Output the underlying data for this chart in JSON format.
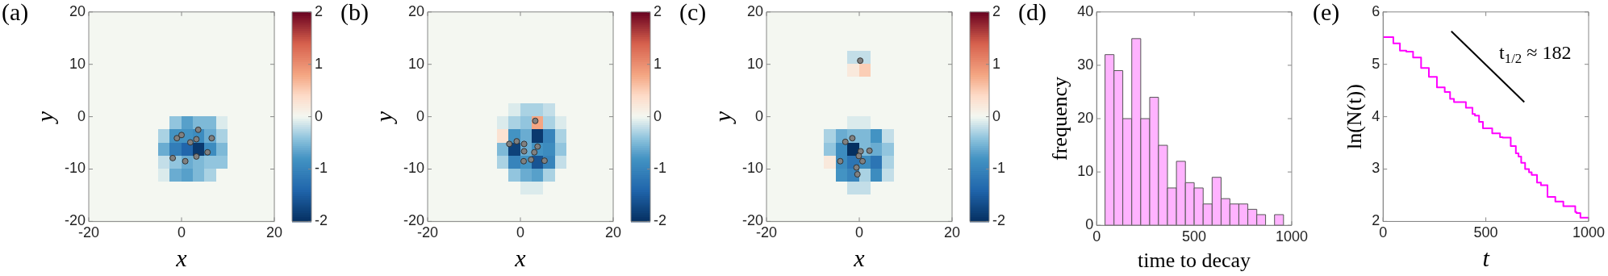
{
  "chart_data": [
    {
      "type": "heatmap",
      "title": "(a)",
      "xlabel": "x",
      "ylabel": "y",
      "xlim": [
        -20,
        20
      ],
      "ylim": [
        -20,
        20
      ],
      "xticks": [
        -20,
        0,
        20
      ],
      "yticks": [
        -20,
        -10,
        0,
        10,
        20
      ],
      "clim": [
        -2,
        2
      ],
      "cticks": [
        -2,
        -1,
        0,
        1,
        2
      ],
      "marker": "circle",
      "cells": [
        [
          0,
          0,
          0,
          0,
          0,
          0,
          0,
          0,
          0,
          0,
          0,
          0,
          0,
          0,
          0,
          0
        ],
        [
          0,
          0,
          0,
          0,
          0,
          0,
          0,
          0,
          0,
          0,
          0,
          0,
          0,
          0,
          0,
          0
        ],
        [
          0,
          0,
          0,
          0,
          0,
          0,
          0,
          0,
          0,
          0,
          0,
          0,
          0,
          0,
          0,
          0
        ],
        [
          0,
          0,
          0,
          0,
          0,
          0,
          0,
          0,
          0,
          0,
          0,
          0,
          0,
          0,
          0,
          0
        ],
        [
          0,
          0,
          0,
          0,
          0,
          0,
          0,
          0,
          0,
          0,
          0,
          0,
          0,
          0,
          0,
          0
        ],
        [
          0,
          0,
          0,
          0,
          0,
          0,
          0,
          0,
          0,
          0,
          0,
          0,
          0,
          0,
          0,
          0
        ],
        [
          0,
          0,
          0,
          0,
          0,
          0,
          0,
          0,
          0,
          0,
          0,
          0,
          0,
          0,
          0,
          0
        ],
        [
          0,
          0,
          0,
          0,
          0,
          0,
          0,
          0,
          0,
          0,
          0,
          0,
          0,
          0,
          0,
          0
        ],
        [
          0,
          0,
          0,
          0,
          0,
          0,
          0,
          -0.4,
          -0.7,
          -0.5,
          -0.5,
          -0.1,
          0,
          0,
          0,
          0
        ],
        [
          0,
          0,
          0,
          0,
          0,
          0,
          -0.3,
          -0.8,
          -0.8,
          -0.9,
          -0.6,
          -0.3,
          0,
          0,
          0,
          0
        ],
        [
          0,
          0,
          0,
          0,
          0,
          0,
          -0.6,
          -1.1,
          -1.4,
          -1.9,
          -0.9,
          -0.5,
          0,
          0,
          0,
          0
        ],
        [
          0,
          0,
          0,
          0,
          0,
          0,
          -0.2,
          -0.4,
          -0.6,
          -0.5,
          -0.4,
          -0.4,
          0,
          0,
          0,
          0
        ],
        [
          0,
          0,
          0,
          0,
          0,
          0,
          -0.1,
          -0.6,
          -0.7,
          -0.5,
          -0.3,
          0,
          0,
          0,
          0,
          0
        ],
        [
          0,
          0,
          0,
          0,
          0,
          0,
          0,
          0,
          0,
          0,
          0,
          0,
          0,
          0,
          0,
          0
        ],
        [
          0,
          0,
          0,
          0,
          0,
          0,
          0,
          0,
          0,
          0,
          0,
          0,
          0,
          0,
          0,
          0
        ],
        [
          0,
          0,
          0,
          0,
          0,
          0,
          0,
          0,
          0,
          0,
          0,
          0,
          0,
          0,
          0,
          0
        ]
      ],
      "series": [
        {
          "type": "scatter",
          "color": "#808080",
          "x": [
            -1.0,
            0,
            1.9,
            3.2,
            3.6,
            6.5,
            5.6,
            3.2,
            0.8,
            -1.9
          ],
          "values": [
            -4.1,
            -3.5,
            -4.9,
            -4.3,
            -2.5,
            -4.1,
            -6.8,
            -7.6,
            -8.5,
            -7.9
          ]
        }
      ]
    },
    {
      "type": "heatmap",
      "title": "(b)",
      "xlabel": "x",
      "ylabel": "y",
      "xlim": [
        -20,
        20
      ],
      "ylim": [
        -20,
        20
      ],
      "xticks": [
        -20,
        0,
        20
      ],
      "yticks": [
        -20,
        -10,
        0,
        10,
        20
      ],
      "clim": [
        -2,
        2
      ],
      "cticks": [
        -2,
        -1,
        0,
        1,
        2
      ],
      "marker": "circle",
      "cells": [
        [
          0,
          0,
          0,
          0,
          0,
          0,
          0,
          0,
          0,
          0,
          0,
          0,
          0,
          0,
          0,
          0
        ],
        [
          0,
          0,
          0,
          0,
          0,
          0,
          0,
          0,
          0,
          0,
          0,
          0,
          0,
          0,
          0,
          0
        ],
        [
          0,
          0,
          0,
          0,
          0,
          0,
          0,
          0,
          0,
          0,
          0,
          0,
          0,
          0,
          0,
          0
        ],
        [
          0,
          0,
          0,
          0,
          0,
          0,
          0,
          0,
          0,
          0,
          0,
          0,
          0,
          0,
          0,
          0
        ],
        [
          0,
          0,
          0,
          0,
          0,
          0,
          0,
          0,
          0,
          0,
          0,
          0,
          0,
          0,
          0,
          0
        ],
        [
          0,
          0,
          0,
          0,
          0,
          0,
          0,
          0,
          0,
          0,
          0,
          0,
          0,
          0,
          0,
          0
        ],
        [
          0,
          0,
          0,
          0,
          0,
          0,
          0,
          0,
          0,
          0,
          0,
          0,
          0,
          0,
          0,
          0
        ],
        [
          0,
          0,
          0,
          0,
          0,
          0,
          0,
          -0.1,
          -0.3,
          -0.3,
          -0.2,
          0,
          0,
          0,
          0,
          0
        ],
        [
          0,
          0,
          0,
          0,
          0,
          0,
          -0.1,
          -0.3,
          -0.4,
          0.8,
          -0.3,
          -0.1,
          0,
          0,
          0,
          0
        ],
        [
          0,
          0,
          0,
          0,
          0,
          0,
          0.3,
          -0.8,
          -0.6,
          -1.9,
          -1.0,
          -0.3,
          0,
          0,
          0,
          0
        ],
        [
          0,
          0,
          0,
          0,
          0,
          0,
          -0.5,
          -1.8,
          -0.6,
          -0.8,
          -0.9,
          -0.4,
          0,
          0,
          0,
          0
        ],
        [
          0,
          0,
          0,
          0,
          0,
          0,
          -0.3,
          -1.0,
          -0.8,
          -1.6,
          -1.0,
          -0.2,
          0,
          0,
          0,
          0
        ],
        [
          0,
          0,
          0,
          0,
          0,
          0,
          0,
          -0.4,
          -0.6,
          -0.7,
          -0.3,
          0,
          0,
          0,
          0,
          0
        ],
        [
          0,
          0,
          0,
          0,
          0,
          0,
          0,
          0,
          -0.1,
          -0.1,
          0,
          0,
          0,
          0,
          0,
          0
        ],
        [
          0,
          0,
          0,
          0,
          0,
          0,
          0,
          0,
          0,
          0,
          0,
          0,
          0,
          0,
          0,
          0
        ],
        [
          0,
          0,
          0,
          0,
          0,
          0,
          0,
          0,
          0,
          0,
          0,
          0,
          0,
          0,
          0,
          0
        ]
      ],
      "series": [
        {
          "type": "scatter",
          "color": "#808080",
          "x": [
            3.2,
            -2.4,
            -0.8,
            0.8,
            3.7,
            0.8,
            3.0,
            0.7,
            2.3,
            5.2
          ],
          "values": [
            -0.8,
            -5.2,
            -4.7,
            -5.2,
            -5.7,
            -6.6,
            -6.8,
            -8.5,
            -8.2,
            -8.4
          ]
        }
      ]
    },
    {
      "type": "heatmap",
      "title": "(c)",
      "xlabel": "x",
      "ylabel": "y",
      "xlim": [
        -20,
        20
      ],
      "ylim": [
        -20,
        20
      ],
      "xticks": [
        -20,
        0,
        20
      ],
      "yticks": [
        -20,
        -10,
        0,
        10,
        20
      ],
      "clim": [
        -2,
        2
      ],
      "cticks": [
        -2,
        -1,
        0,
        1,
        2
      ],
      "marker": "circle",
      "cells": [
        [
          0,
          0,
          0,
          0,
          0,
          0,
          0,
          0,
          0,
          0,
          0,
          0,
          0,
          0,
          0,
          0
        ],
        [
          0,
          0,
          0,
          0,
          0,
          0,
          0,
          0,
          0,
          0,
          0,
          0,
          0,
          0,
          0,
          0
        ],
        [
          0,
          0,
          0,
          0,
          0,
          0,
          0,
          0,
          0,
          0,
          0,
          0,
          0,
          0,
          0,
          0
        ],
        [
          0,
          0,
          0,
          0,
          0,
          0,
          0,
          -0.2,
          -0.2,
          0,
          0,
          0,
          0,
          0,
          0,
          0
        ],
        [
          0,
          0,
          0,
          0,
          0,
          0,
          0,
          0.2,
          0.5,
          0,
          0,
          0,
          0,
          0,
          0,
          0
        ],
        [
          0,
          0,
          0,
          0,
          0,
          0,
          0,
          0,
          0,
          0,
          0,
          0,
          0,
          0,
          0,
          0
        ],
        [
          0,
          0,
          0,
          0,
          0,
          0,
          0,
          0,
          0,
          0,
          0,
          0,
          0,
          0,
          0,
          0
        ],
        [
          0,
          0,
          0,
          0,
          0,
          0,
          0,
          0,
          0,
          0,
          0,
          0,
          0,
          0,
          0,
          0
        ],
        [
          0,
          0,
          0,
          0,
          0,
          0,
          0,
          -0.1,
          -0.1,
          0,
          0,
          0,
          0,
          0,
          0,
          0
        ],
        [
          0,
          0,
          0,
          0,
          0,
          -0.3,
          -0.6,
          -0.5,
          -0.5,
          -0.8,
          -0.2,
          0,
          0,
          0,
          0,
          0
        ],
        [
          0,
          0,
          0,
          0,
          0,
          -0.4,
          -0.9,
          -2.0,
          -0.5,
          -0.6,
          -0.4,
          0,
          0,
          0,
          0,
          0
        ],
        [
          0,
          0,
          0,
          0,
          0,
          0.2,
          -0.9,
          -1.2,
          -0.9,
          -1.2,
          -0.3,
          0,
          0,
          0,
          0,
          0
        ],
        [
          0,
          0,
          0,
          0,
          0,
          0,
          -0.8,
          -1.0,
          -0.3,
          -0.9,
          -0.2,
          0,
          0,
          0,
          0,
          0
        ],
        [
          0,
          0,
          0,
          0,
          0,
          0,
          0,
          -0.2,
          -0.2,
          0,
          0,
          0,
          0,
          0,
          0,
          0
        ],
        [
          0,
          0,
          0,
          0,
          0,
          0,
          0,
          0,
          0,
          0,
          0,
          0,
          0,
          0,
          0,
          0
        ],
        [
          0,
          0,
          0,
          0,
          0,
          0,
          0,
          0,
          0,
          0,
          0,
          0,
          0,
          0,
          0,
          0
        ]
      ],
      "series": [
        {
          "type": "scatter",
          "color": "#808080",
          "x": [
            0.2,
            -3.0,
            -1.5,
            0.3,
            -0.1,
            2.2,
            -4.1,
            0.7,
            -0.6,
            -0.4
          ],
          "values": [
            10.7,
            -4.8,
            -4.1,
            -6.6,
            -7.5,
            -6.5,
            -8.5,
            -8.5,
            -9.7,
            -11.0
          ]
        }
      ]
    },
    {
      "type": "histogram",
      "title": "(d)",
      "xlabel": "time to decay",
      "ylabel": "frequency",
      "xlim": [
        0,
        1000
      ],
      "ylim": [
        0,
        40
      ],
      "xticks": [
        0,
        500,
        1000
      ],
      "yticks": [
        0,
        10,
        20,
        30,
        40
      ],
      "color": "#ffb3ff",
      "bins": [
        43,
        89,
        134,
        180,
        226,
        272,
        317,
        363,
        409,
        455,
        500,
        546,
        592,
        638,
        683,
        729,
        775,
        821,
        866,
        912,
        958
      ],
      "values": [
        32,
        29,
        20,
        35,
        20,
        24,
        15,
        7,
        12,
        8,
        7,
        4,
        9,
        5,
        4,
        4,
        3,
        2,
        0,
        2
      ]
    },
    {
      "type": "step",
      "title": "(e)",
      "xlabel": "t",
      "ylabel": "ln(N(t))",
      "xlim": [
        0,
        1000
      ],
      "ylim": [
        2,
        6
      ],
      "xticks": [
        0,
        500,
        1000
      ],
      "yticks": [
        2,
        3,
        4,
        5,
        6
      ],
      "annotations": [
        "t$_{1/2}$ ≈ 182"
      ],
      "series": [
        {
          "color": "#ff00ff",
          "x": [
            0,
            50,
            82,
            113,
            146,
            185,
            223,
            262,
            300,
            326,
            345,
            403,
            435,
            447,
            467,
            486,
            531,
            569,
            582,
            621,
            646,
            659,
            672,
            691,
            710,
            723,
            749,
            768,
            800,
            813,
            838,
            845,
            877,
            883,
            935,
            941,
            960,
            967,
            1000
          ],
          "values": [
            5.52,
            5.52,
            5.4,
            5.26,
            5.24,
            5.13,
            4.93,
            4.76,
            4.56,
            4.47,
            4.34,
            4.28,
            4.17,
            4.05,
            4.02,
            3.9,
            3.78,
            3.68,
            3.61,
            3.6,
            3.44,
            3.3,
            3.24,
            3.12,
            3.0,
            2.94,
            2.89,
            2.74,
            2.69,
            2.47,
            2.47,
            2.38,
            2.38,
            2.29,
            2.29,
            2.18,
            2.16,
            2.07,
            2.07
          ]
        },
        {
          "type": "line",
          "color": "#000000",
          "x": [
            332,
            687
          ],
          "values": [
            5.63,
            4.28
          ]
        }
      ]
    }
  ]
}
